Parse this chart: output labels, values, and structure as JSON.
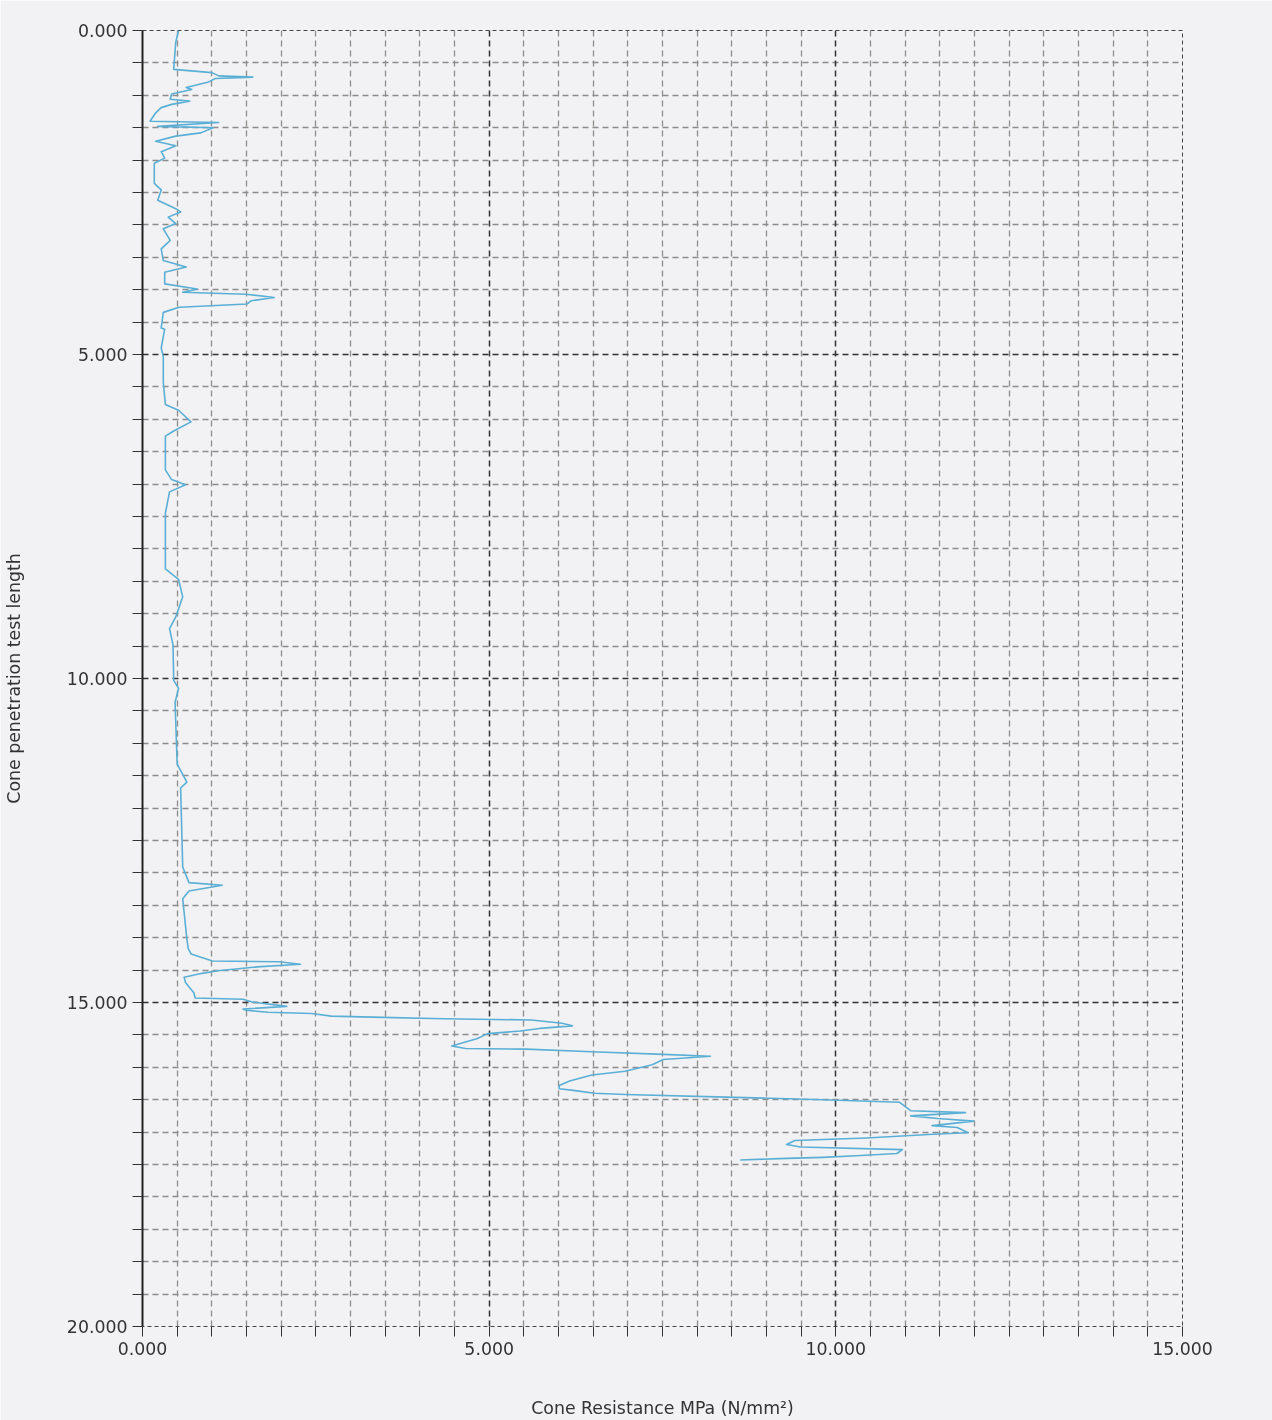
{
  "chart_data": {
    "type": "line",
    "xlabel": "Cone Resistance MPa (N/mm²)",
    "ylabel": "Cone penetration test length",
    "series": [
      {
        "color": "#5aafd6",
        "x": [
          0.52,
          0.48,
          0.45,
          1.0,
          1.1,
          1.59,
          1.05,
          0.94,
          0.63,
          0.71,
          0.42,
          0.4,
          0.68,
          0.42,
          0.27,
          0.19,
          0.11,
          1.1,
          0.22,
          1.02,
          0.84,
          0.48,
          0.19,
          0.48,
          0.27,
          0.32,
          0.17,
          0.17,
          0.27,
          0.22,
          0.48,
          0.55,
          0.37,
          0.48,
          0.3,
          0.4,
          0.27,
          0.3,
          0.63,
          0.32,
          0.32,
          0.79,
          0.58,
          1.49,
          1.9,
          1.57,
          1.51,
          0.53,
          0.3,
          0.27,
          0.32,
          0.27,
          0.3,
          0.3,
          0.33,
          0.52,
          0.7,
          0.45,
          0.33,
          0.33,
          0.42,
          0.62,
          0.39,
          0.33,
          0.33,
          0.52,
          0.58,
          0.48,
          0.39,
          0.44,
          0.45,
          0.52,
          0.47,
          0.5,
          0.64,
          0.55,
          0.58,
          0.67,
          1.15,
          0.67,
          0.58,
          0.64,
          0.66,
          0.7,
          1.01,
          1.97,
          2.28,
          1.65,
          1.09,
          0.86,
          0.6,
          0.62,
          0.74,
          0.76,
          1.45,
          1.57,
          2.08,
          1.45,
          1.49,
          1.81,
          2.44,
          2.72,
          3.47,
          4.34,
          5.61,
          6.05,
          6.2,
          5.73,
          5.45,
          4.98,
          4.82,
          4.46,
          4.66,
          5.53,
          6.48,
          7.51,
          8.19,
          7.51,
          7.35,
          6.96,
          6.48,
          6.16,
          6.01,
          6.01,
          6.24,
          6.52,
          6.96,
          8.42,
          9.81,
          10.92,
          11.08,
          11.87,
          11.08,
          11.47,
          11.99,
          11.39,
          11.75,
          11.91,
          11.47,
          10.44,
          9.41,
          9.29,
          9.49,
          10.96,
          10.88,
          10.36,
          9.81,
          9.18,
          8.62
        ],
        "values": [
          0,
          0.18,
          0.6,
          0.65,
          0.7,
          0.72,
          0.74,
          0.8,
          0.88,
          0.91,
          0.98,
          1.06,
          1.09,
          1.14,
          1.19,
          1.27,
          1.4,
          1.42,
          1.48,
          1.5,
          1.58,
          1.63,
          1.71,
          1.78,
          1.87,
          1.97,
          2.05,
          2.36,
          2.46,
          2.62,
          2.75,
          2.8,
          2.88,
          2.98,
          3.06,
          3.24,
          3.37,
          3.55,
          3.65,
          3.73,
          3.91,
          3.99,
          4.04,
          4.07,
          4.12,
          4.17,
          4.22,
          4.27,
          4.35,
          4.59,
          4.61,
          4.9,
          5.03,
          5.43,
          5.77,
          5.86,
          6.04,
          6.18,
          6.26,
          6.78,
          6.93,
          7.01,
          7.12,
          7.45,
          8.31,
          8.47,
          8.74,
          9.05,
          9.23,
          9.48,
          10.03,
          10.15,
          10.37,
          11.32,
          11.6,
          11.69,
          12.91,
          13.15,
          13.19,
          13.28,
          13.4,
          14.02,
          14.17,
          14.25,
          14.36,
          14.37,
          14.41,
          14.45,
          14.51,
          14.55,
          14.61,
          14.69,
          14.85,
          14.93,
          14.95,
          14.99,
          15.06,
          15.1,
          15.12,
          15.15,
          15.17,
          15.21,
          15.23,
          15.25,
          15.27,
          15.32,
          15.36,
          15.4,
          15.44,
          15.48,
          15.56,
          15.67,
          15.71,
          15.72,
          15.76,
          15.8,
          15.83,
          15.88,
          15.96,
          16.06,
          16.12,
          16.21,
          16.28,
          16.33,
          16.36,
          16.4,
          16.42,
          16.46,
          16.5,
          16.54,
          16.67,
          16.7,
          16.75,
          16.79,
          16.83,
          16.9,
          16.93,
          17.01,
          17.03,
          17.09,
          17.13,
          17.19,
          17.23,
          17.27,
          17.33,
          17.36,
          17.39,
          17.41,
          17.43
        ]
      }
    ],
    "xlim": [
      0,
      15
    ],
    "ylim": [
      20,
      0
    ],
    "xticks": [
      {
        "value": 0,
        "label": "0.000"
      },
      {
        "value": 0.5,
        "label": null
      },
      {
        "value": 1,
        "label": null
      },
      {
        "value": 1.5,
        "label": null
      },
      {
        "value": 2,
        "label": null
      },
      {
        "value": 2.5,
        "label": null
      },
      {
        "value": 3,
        "label": null
      },
      {
        "value": 3.5,
        "label": null
      },
      {
        "value": 4,
        "label": null
      },
      {
        "value": 4.5,
        "label": null
      },
      {
        "value": 5,
        "label": "5.000"
      },
      {
        "value": 5.5,
        "label": null
      },
      {
        "value": 6,
        "label": null
      },
      {
        "value": 6.5,
        "label": null
      },
      {
        "value": 7,
        "label": null
      },
      {
        "value": 7.5,
        "label": null
      },
      {
        "value": 8,
        "label": null
      },
      {
        "value": 8.5,
        "label": null
      },
      {
        "value": 9,
        "label": null
      },
      {
        "value": 9.5,
        "label": null
      },
      {
        "value": 10,
        "label": "10.000"
      },
      {
        "value": 10.5,
        "label": null
      },
      {
        "value": 11,
        "label": null
      },
      {
        "value": 11.5,
        "label": null
      },
      {
        "value": 12,
        "label": null
      },
      {
        "value": 12.5,
        "label": null
      },
      {
        "value": 13,
        "label": null
      },
      {
        "value": 13.5,
        "label": null
      },
      {
        "value": 14,
        "label": null
      },
      {
        "value": 14.5,
        "label": null
      },
      {
        "value": 15,
        "label": "15.000"
      }
    ],
    "yticks": [
      {
        "value": 0,
        "label": "0.000"
      },
      {
        "value": 0.5,
        "label": null
      },
      {
        "value": 1,
        "label": null
      },
      {
        "value": 1.5,
        "label": null
      },
      {
        "value": 2,
        "label": null
      },
      {
        "value": 2.5,
        "label": null
      },
      {
        "value": 3,
        "label": null
      },
      {
        "value": 3.5,
        "label": null
      },
      {
        "value": 4,
        "label": null
      },
      {
        "value": 4.5,
        "label": null
      },
      {
        "value": 5,
        "label": "5.000"
      },
      {
        "value": 5.5,
        "label": null
      },
      {
        "value": 6,
        "label": null
      },
      {
        "value": 6.5,
        "label": null
      },
      {
        "value": 7,
        "label": null
      },
      {
        "value": 7.5,
        "label": null
      },
      {
        "value": 8,
        "label": null
      },
      {
        "value": 8.5,
        "label": null
      },
      {
        "value": 9,
        "label": null
      },
      {
        "value": 9.5,
        "label": null
      },
      {
        "value": 10,
        "label": "10.000"
      },
      {
        "value": 10.5,
        "label": null
      },
      {
        "value": 11,
        "label": null
      },
      {
        "value": 11.5,
        "label": null
      },
      {
        "value": 12,
        "label": null
      },
      {
        "value": 12.5,
        "label": null
      },
      {
        "value": 13,
        "label": null
      },
      {
        "value": 13.5,
        "label": null
      },
      {
        "value": 14,
        "label": null
      },
      {
        "value": 14.5,
        "label": null
      },
      {
        "value": 15,
        "label": "15.000"
      },
      {
        "value": 15.5,
        "label": null
      },
      {
        "value": 16,
        "label": null
      },
      {
        "value": 16.5,
        "label": null
      },
      {
        "value": 17,
        "label": null
      },
      {
        "value": 17.5,
        "label": null
      },
      {
        "value": 18,
        "label": null
      },
      {
        "value": 18.5,
        "label": null
      },
      {
        "value": 19,
        "label": null
      },
      {
        "value": 19.5,
        "label": null
      },
      {
        "value": 20,
        "label": "20.000"
      }
    ],
    "grid": true,
    "marker": "none",
    "line_style": "solid"
  }
}
